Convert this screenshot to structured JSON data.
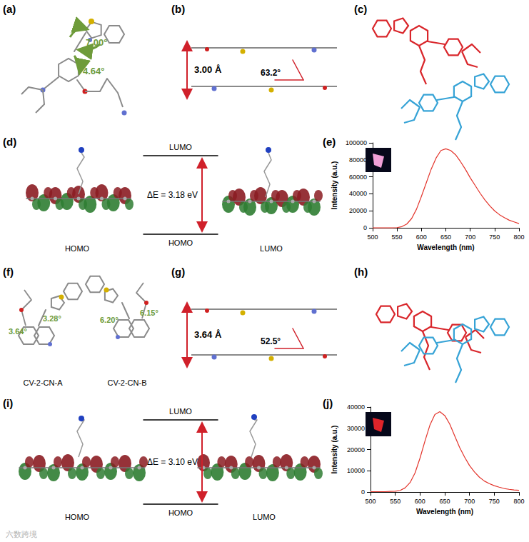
{
  "panels": {
    "a": {
      "label": "(a)",
      "angles": [
        "7.00°",
        "4.64°"
      ]
    },
    "b": {
      "label": "(b)",
      "distance": "3.00 Å",
      "angle": "63.2°"
    },
    "c": {
      "label": "(c)"
    },
    "d": {
      "label": "(d)",
      "orbitals": [
        "HOMO",
        "LUMO"
      ],
      "top_level": "LUMO",
      "bottom_level": "HOMO",
      "gap": "ΔE = 3.18 eV"
    },
    "e": {
      "label": "(e)"
    },
    "f": {
      "label": "(f)",
      "molecules": [
        {
          "name": "CV-2-CN-A",
          "angles": [
            "3.28°",
            "3.64°"
          ]
        },
        {
          "name": "CV-2-CN-B",
          "angles": [
            "6.15°",
            "6.20°"
          ]
        }
      ]
    },
    "g": {
      "label": "(g)",
      "distance": "3.64 Å",
      "angle": "52.5°"
    },
    "h": {
      "label": "(h)"
    },
    "i": {
      "label": "(i)",
      "orbitals": [
        "HOMO",
        "LUMO"
      ],
      "top_level": "LUMO",
      "bottom_level": "HOMO",
      "gap": "ΔE = 3.10 eV"
    },
    "j": {
      "label": "(j)"
    }
  },
  "watermark": "六数跨境",
  "chart_data": [
    {
      "type": "line",
      "xlabel": "Wavelength (nm)",
      "ylabel": "Intensity (a.u.)",
      "color": "#e3342b",
      "grid": false,
      "x": [
        500,
        510,
        520,
        530,
        540,
        550,
        560,
        570,
        580,
        590,
        600,
        610,
        620,
        630,
        640,
        650,
        660,
        670,
        680,
        690,
        700,
        710,
        720,
        730,
        740,
        750,
        760,
        770,
        780,
        790,
        800
      ],
      "values": [
        0,
        0,
        0,
        0,
        0,
        300,
        1500,
        4500,
        11000,
        22000,
        37000,
        53000,
        69000,
        82000,
        91000,
        93000,
        91000,
        86000,
        78000,
        69000,
        59000,
        50000,
        41000,
        33000,
        26000,
        20000,
        15500,
        12000,
        9000,
        7000,
        5000
      ],
      "xlim": [
        500,
        800
      ],
      "xticks": [
        500,
        550,
        600,
        650,
        700,
        750,
        800
      ],
      "ylim": [
        0,
        100000
      ],
      "yticks": [
        0,
        20000,
        40000,
        60000,
        80000,
        100000
      ]
    },
    {
      "type": "line",
      "xlabel": "Wavelength (nm)",
      "ylabel": "Intensity (a.u.)",
      "color": "#e3342b",
      "grid": false,
      "x": [
        500,
        510,
        520,
        530,
        540,
        550,
        560,
        570,
        580,
        590,
        600,
        610,
        620,
        630,
        640,
        650,
        660,
        670,
        680,
        690,
        700,
        710,
        720,
        730,
        740,
        750,
        760,
        770,
        780,
        790,
        800
      ],
      "values": [
        200,
        200,
        200,
        200,
        300,
        400,
        800,
        2000,
        4500,
        9000,
        16000,
        24000,
        31500,
        36500,
        37800,
        36000,
        32000,
        26500,
        21000,
        16500,
        12500,
        9500,
        7000,
        5200,
        4000,
        3000,
        2300,
        1700,
        1300,
        1000,
        800
      ],
      "xlim": [
        500,
        800
      ],
      "xticks": [
        500,
        550,
        600,
        650,
        700,
        750,
        800
      ],
      "ylim": [
        0,
        40000
      ],
      "yticks": [
        0,
        10000,
        20000,
        30000,
        40000
      ]
    }
  ]
}
